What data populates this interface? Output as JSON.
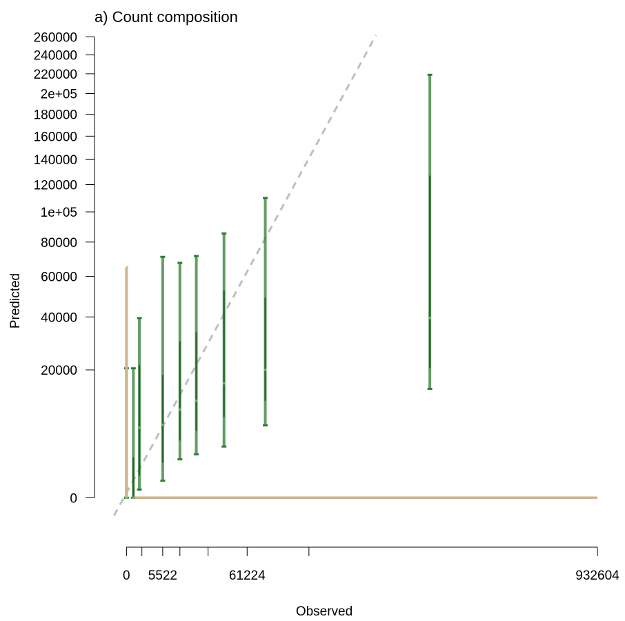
{
  "chart_data": {
    "type": "scatter",
    "title": "a) Count composition",
    "xlabel": "Observed",
    "ylabel": "Predicted",
    "x_scale": "sqrt",
    "y_scale": "sqrt",
    "xlim": [
      -2500,
      932604
    ],
    "ylim": [
      -3000,
      265000
    ],
    "x_ticks": [
      {
        "value": 0,
        "label": "0"
      },
      {
        "value": 1000,
        "label": ""
      },
      {
        "value": 5522,
        "label": "5522"
      },
      {
        "value": 12000,
        "label": ""
      },
      {
        "value": 28000,
        "label": ""
      },
      {
        "value": 61224,
        "label": "61224"
      },
      {
        "value": 140000,
        "label": ""
      },
      {
        "value": 932604,
        "label": "932604"
      }
    ],
    "y_ticks": [
      {
        "value": 0,
        "label": "0"
      },
      {
        "value": 20000,
        "label": "20000"
      },
      {
        "value": 40000,
        "label": "40000"
      },
      {
        "value": 60000,
        "label": "60000"
      },
      {
        "value": 80000,
        "label": "80000"
      },
      {
        "value": 100000,
        "label": "1e+05"
      },
      {
        "value": 120000,
        "label": "120000"
      },
      {
        "value": 140000,
        "label": "140000"
      },
      {
        "value": 160000,
        "label": "160000"
      },
      {
        "value": 180000,
        "label": "180000"
      },
      {
        "value": 200000,
        "label": "2e+05"
      },
      {
        "value": 220000,
        "label": "220000"
      },
      {
        "value": 240000,
        "label": "240000"
      },
      {
        "value": 260000,
        "label": "260000"
      }
    ],
    "reference_line": {
      "type": "identity",
      "color": "#bfbfbf",
      "dash": true
    },
    "series": [
      {
        "color": "#2e7d32",
        "points": [
          {
            "x": 0,
            "lo": 0,
            "q1": 0,
            "median": 0,
            "q3": 0,
            "hi": 20500
          },
          {
            "x": 200,
            "lo": 0,
            "q1": 0,
            "median": 0,
            "q3": 2000,
            "hi": 20500
          },
          {
            "x": 700,
            "lo": 80,
            "q1": 600,
            "median": 6000,
            "q3": 21500,
            "hi": 39500
          },
          {
            "x": 5522,
            "lo": 350,
            "q1": 1500,
            "median": 6500,
            "q3": 18500,
            "hi": 71000
          },
          {
            "x": 12000,
            "lo": 1800,
            "q1": 4000,
            "median": 9500,
            "q3": 30000,
            "hi": 67500
          },
          {
            "x": 20500,
            "lo": 2300,
            "q1": 5500,
            "median": 11500,
            "q3": 33500,
            "hi": 71500
          },
          {
            "x": 40000,
            "lo": 3200,
            "q1": 8000,
            "median": 16000,
            "q3": 52500,
            "hi": 85500
          },
          {
            "x": 81000,
            "lo": 6400,
            "q1": 11500,
            "median": 20000,
            "q3": 49000,
            "hi": 110000
          },
          {
            "x": 387000,
            "lo": 14500,
            "q1": 20500,
            "median": 39500,
            "q3": 127000,
            "hi": 219000
          }
        ]
      },
      {
        "color": "#d2b48c",
        "points": [
          {
            "x": 0,
            "lo": 0,
            "hi": 65000
          },
          {
            "x": 300,
            "lo": 0,
            "hi": 0
          },
          {
            "x": 932604,
            "lo": 0,
            "hi": 0
          }
        ]
      }
    ]
  }
}
